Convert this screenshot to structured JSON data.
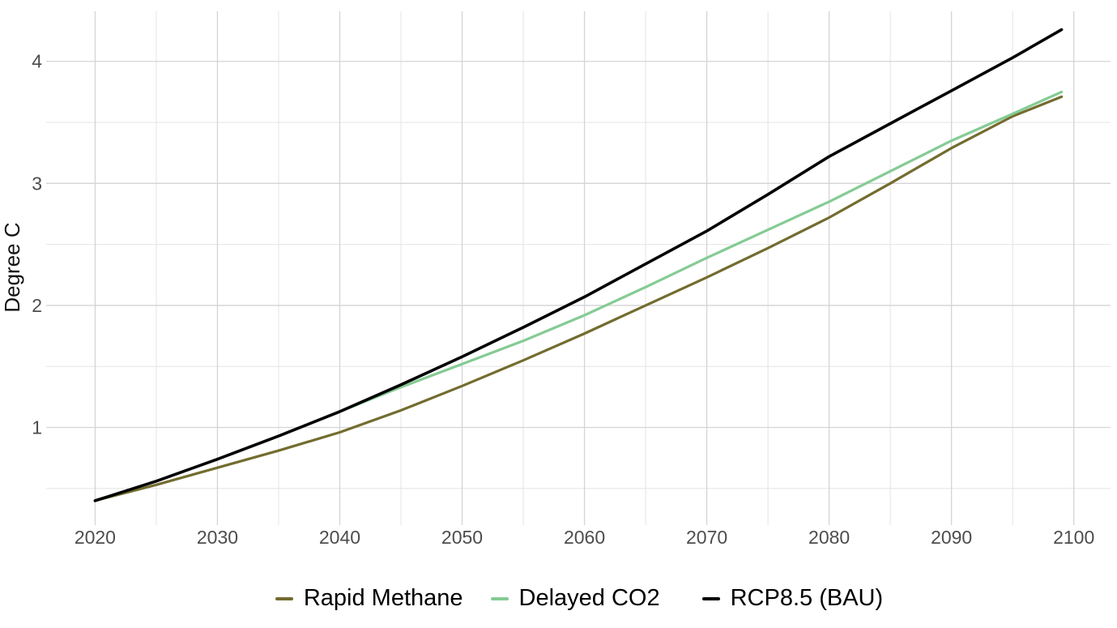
{
  "chart_data": {
    "type": "line",
    "title": "",
    "ylabel": "Degree C",
    "xlabel": "",
    "x": [
      2020,
      2025,
      2030,
      2035,
      2040,
      2045,
      2050,
      2055,
      2060,
      2065,
      2070,
      2075,
      2080,
      2085,
      2090,
      2095,
      2099
    ],
    "series": [
      {
        "name": "Rapid Methane",
        "color": "#736c2f",
        "values": [
          0.4,
          0.53,
          0.67,
          0.81,
          0.96,
          1.14,
          1.34,
          1.55,
          1.77,
          2.0,
          2.23,
          2.47,
          2.72,
          3.0,
          3.29,
          3.55,
          3.71
        ]
      },
      {
        "name": "Delayed CO2",
        "color": "#85cb94",
        "values": [
          0.4,
          0.56,
          0.74,
          0.93,
          1.13,
          1.33,
          1.52,
          1.71,
          1.92,
          2.15,
          2.39,
          2.62,
          2.85,
          3.1,
          3.35,
          3.57,
          3.75
        ]
      },
      {
        "name": "RCP8.5 (BAU)",
        "color": "#000000",
        "values": [
          0.4,
          0.56,
          0.74,
          0.93,
          1.13,
          1.35,
          1.58,
          1.82,
          2.07,
          2.34,
          2.61,
          2.91,
          3.22,
          3.49,
          3.76,
          4.03,
          4.26
        ]
      }
    ],
    "x_ticks": [
      2020,
      2030,
      2040,
      2050,
      2060,
      2070,
      2080,
      2090,
      2100
    ],
    "x_minor_ticks": [
      2025,
      2035,
      2045,
      2055,
      2065,
      2075,
      2085,
      2095
    ],
    "y_ticks": [
      1,
      2,
      3,
      4
    ],
    "y_minor_ticks": [
      0.5,
      1.5,
      2.5,
      3.5
    ],
    "xlim": [
      2016,
      2103
    ],
    "ylim": [
      0.2,
      4.41
    ],
    "grid": "major-and-minor",
    "grid_major_color": "#d4d4d4",
    "grid_minor_color": "#e6e6e6",
    "tick_label_color": "#4d4d4d",
    "background_color": "#ffffff",
    "legend_position": "bottom"
  }
}
